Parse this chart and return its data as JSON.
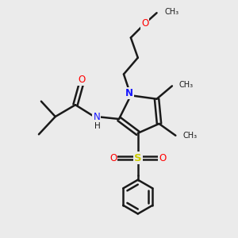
{
  "bg_color": "#ebebeb",
  "bond_color": "#1a1a1a",
  "bond_width": 1.8,
  "N_color": "#1414ff",
  "O_color": "#ff0000",
  "S_color": "#cccc00",
  "font_size_atom": 8.5,
  "figsize": [
    3.0,
    3.0
  ],
  "dpi": 100,
  "xlim": [
    0,
    10
  ],
  "ylim": [
    0,
    10
  ]
}
